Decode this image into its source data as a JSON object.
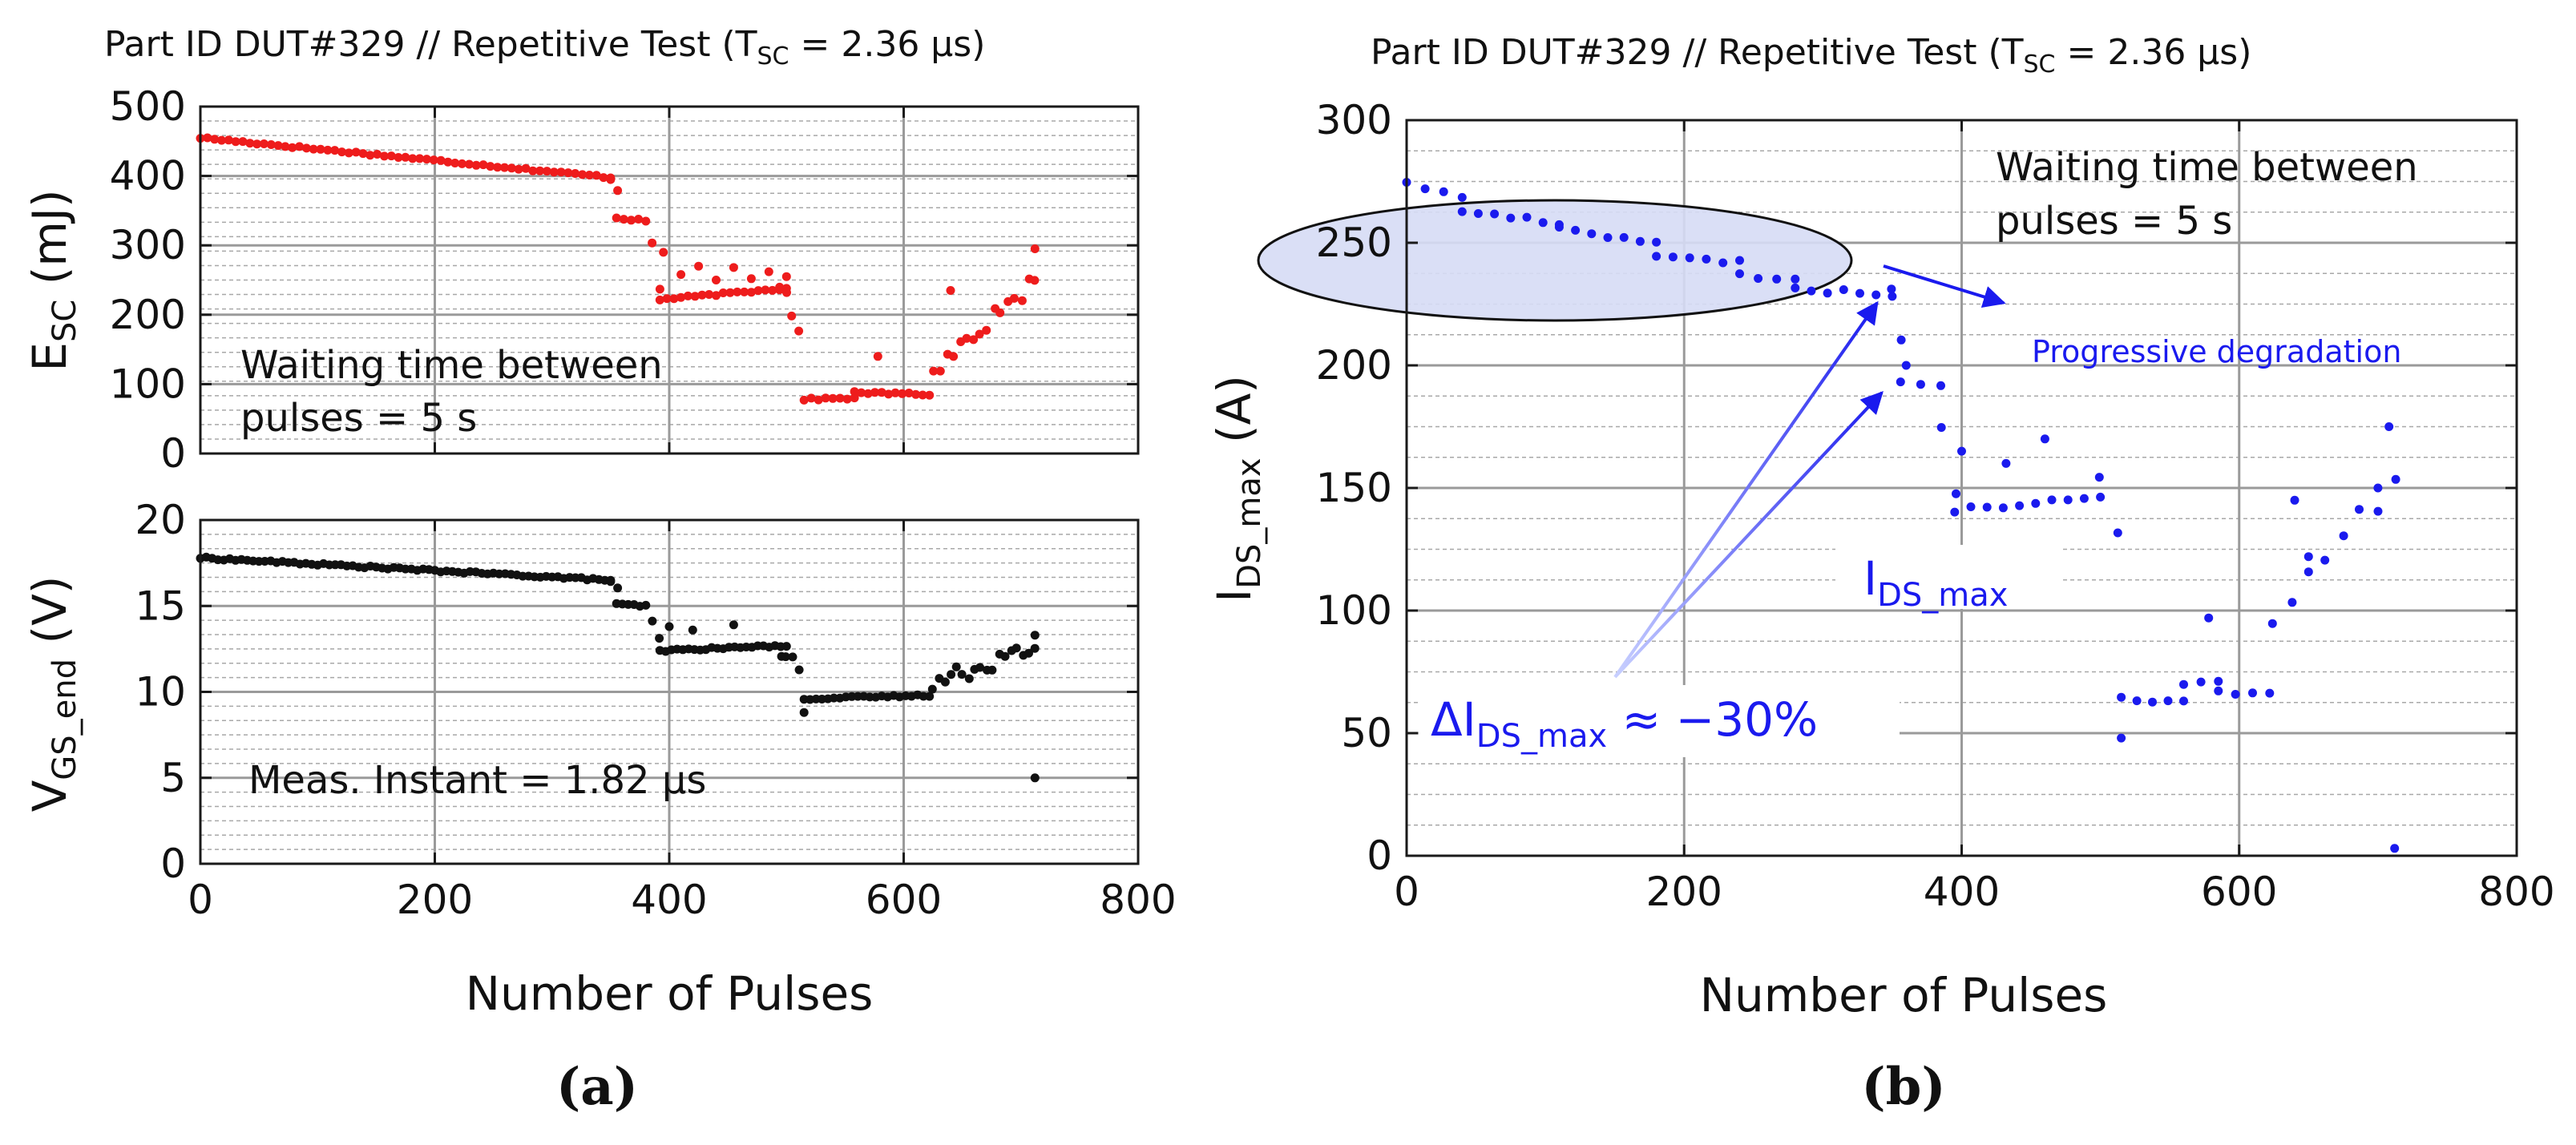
{
  "chart_data": [
    {
      "type": "scatter",
      "panel": "a-top",
      "title": "Part ID DUT#329 // Repetitive Test (T_SC = 2.36 µs)",
      "title_parts": {
        "pre": "Part ID DUT#329 // Repetitive Test (T",
        "sub": "SC",
        "post": " = 2.36 µs)"
      },
      "xlabel": "",
      "ylabel": "E_SC (mJ)",
      "ylabel_parts": {
        "pre": "E",
        "sub": "SC",
        "post": " (mJ)"
      },
      "xlim": [
        0,
        800
      ],
      "ylim": [
        0,
        500
      ],
      "yticks": [
        0,
        100,
        200,
        300,
        400,
        500
      ],
      "xticks": [],
      "grid": true,
      "color": "#ee1c1c",
      "annotation": [
        "Waiting time between",
        "pulses = 5 s"
      ],
      "series": [
        {
          "name": "E_SC",
          "segments": [
            {
              "x0": 0,
              "x1": 350,
              "y0": 455,
              "y1": 398,
              "mode": "line"
            },
            {
              "x0": 350,
              "x1": 356,
              "y0": 395,
              "y1": 380,
              "mode": "line"
            },
            {
              "x0": 355,
              "x1": 380,
              "y0": 340,
              "y1": 335,
              "mode": "line"
            },
            {
              "x0": 385,
              "x1": 392,
              "y0": 300,
              "y1": 240,
              "mode": "scatter"
            },
            {
              "x0": 392,
              "x1": 500,
              "y0": 222,
              "y1": 238,
              "mode": "line"
            },
            {
              "x0": 495,
              "x1": 510,
              "y0": 250,
              "y1": 185,
              "mode": "scatter"
            },
            {
              "x0": 515,
              "x1": 558,
              "y0": 78,
              "y1": 80,
              "mode": "line"
            },
            {
              "x0": 558,
              "x1": 622,
              "y0": 88,
              "y1": 85,
              "mode": "line"
            },
            {
              "x0": 625,
              "x1": 712,
              "y0": 120,
              "y1": 250,
              "mode": "scatter"
            }
          ],
          "outliers": [
            [
              395,
              290
            ],
            [
              410,
              258
            ],
            [
              425,
              270
            ],
            [
              440,
              250
            ],
            [
              455,
              268
            ],
            [
              470,
              252
            ],
            [
              485,
              262
            ],
            [
              500,
              255
            ],
            [
              578,
              140
            ],
            [
              640,
              235
            ],
            [
              712,
              295
            ]
          ]
        }
      ]
    },
    {
      "type": "scatter",
      "panel": "a-bottom",
      "xlabel": "Number of Pulses",
      "ylabel": "V_GS_end (V)",
      "ylabel_parts": {
        "pre": "V",
        "sub": "GS_end",
        "post": " (V)"
      },
      "xlim": [
        0,
        800
      ],
      "ylim": [
        0,
        20
      ],
      "yticks": [
        0,
        5,
        10,
        15,
        20
      ],
      "xticks": [
        0,
        200,
        400,
        600,
        800
      ],
      "grid": true,
      "color": "#111111",
      "annotation": [
        "Meas. Instant = 1.82 µs"
      ],
      "series": [
        {
          "name": "V_GS_end",
          "segments": [
            {
              "x0": 0,
              "x1": 350,
              "y0": 17.8,
              "y1": 16.5,
              "mode": "line"
            },
            {
              "x0": 350,
              "x1": 356,
              "y0": 16.4,
              "y1": 16.0,
              "mode": "line"
            },
            {
              "x0": 355,
              "x1": 380,
              "y0": 15.1,
              "y1": 15.0,
              "mode": "line"
            },
            {
              "x0": 385,
              "x1": 392,
              "y0": 14.0,
              "y1": 12.8,
              "mode": "scatter"
            },
            {
              "x0": 392,
              "x1": 500,
              "y0": 12.4,
              "y1": 12.7,
              "mode": "line"
            },
            {
              "x0": 495,
              "x1": 510,
              "y0": 12.5,
              "y1": 11.5,
              "mode": "scatter"
            },
            {
              "x0": 515,
              "x1": 622,
              "y0": 9.6,
              "y1": 9.8,
              "mode": "line"
            },
            {
              "x0": 625,
              "x1": 712,
              "y0": 10.5,
              "y1": 12.6,
              "mode": "scatter"
            }
          ],
          "outliers": [
            [
              400,
              13.8
            ],
            [
              420,
              13.6
            ],
            [
              455,
              13.9
            ],
            [
              515,
              8.8
            ],
            [
              712,
              13.3
            ],
            [
              712,
              5.0
            ]
          ]
        }
      ]
    },
    {
      "type": "scatter",
      "panel": "b",
      "title": "Part ID DUT#329 // Repetitive Test (T_SC = 2.36 µs)",
      "title_parts": {
        "pre": "Part ID DUT#329 // Repetitive Test (T",
        "sub": "SC",
        "post": " = 2.36 µs)"
      },
      "xlabel": "Number of Pulses",
      "ylabel": "I_DS_max (A)",
      "ylabel_parts": {
        "pre": "I",
        "sub": "DS_max",
        "post": " (A)"
      },
      "xlim": [
        0,
        800
      ],
      "ylim": [
        0,
        300
      ],
      "yticks": [
        0,
        50,
        100,
        150,
        200,
        250,
        300
      ],
      "xticks": [
        0,
        200,
        400,
        600,
        800
      ],
      "grid": true,
      "color": "#1a1aee",
      "annotation": [
        "Waiting time between",
        "pulses = 5 s"
      ],
      "series": [
        {
          "name": "I_DS_max",
          "segments": [
            {
              "x0": 0,
              "x1": 40,
              "y0": 275,
              "y1": 268,
              "mode": "line"
            },
            {
              "x0": 40,
              "x1": 110,
              "y0": 263,
              "y1": 258,
              "mode": "line"
            },
            {
              "x0": 110,
              "x1": 180,
              "y0": 256,
              "y1": 250,
              "mode": "line"
            },
            {
              "x0": 180,
              "x1": 240,
              "y0": 244,
              "y1": 242,
              "mode": "line"
            },
            {
              "x0": 240,
              "x1": 280,
              "y0": 237,
              "y1": 235,
              "mode": "line"
            },
            {
              "x0": 280,
              "x1": 350,
              "y0": 231,
              "y1": 229,
              "mode": "line"
            },
            {
              "x0": 350,
              "x1": 356,
              "y0": 228,
              "y1": 215,
              "mode": "scatter"
            },
            {
              "x0": 356,
              "x1": 385,
              "y0": 193,
              "y1": 191,
              "mode": "line"
            },
            {
              "x0": 385,
              "x1": 395,
              "y0": 180,
              "y1": 150,
              "mode": "scatter"
            },
            {
              "x0": 395,
              "x1": 500,
              "y0": 141,
              "y1": 146,
              "mode": "line"
            },
            {
              "x0": 500,
              "x1": 512,
              "y0": 150,
              "y1": 125,
              "mode": "scatter"
            },
            {
              "x0": 515,
              "x1": 560,
              "y0": 64,
              "y1": 63,
              "mode": "line"
            },
            {
              "x0": 560,
              "x1": 585,
              "y0": 70,
              "y1": 72,
              "mode": "line"
            },
            {
              "x0": 585,
              "x1": 622,
              "y0": 67,
              "y1": 66,
              "mode": "line"
            },
            {
              "x0": 625,
              "x1": 712,
              "y0": 95,
              "y1": 150,
              "mode": "scatter"
            }
          ],
          "outliers": [
            [
              360,
              200
            ],
            [
              400,
              165
            ],
            [
              432,
              160
            ],
            [
              460,
              170
            ],
            [
              515,
              48
            ],
            [
              578,
              97
            ],
            [
              640,
              145
            ],
            [
              650,
              122
            ],
            [
              700,
              150
            ],
            [
              708,
              175
            ],
            [
              712,
              3
            ]
          ]
        }
      ],
      "text_annotations": {
        "progressive": "Progressive degradation",
        "ids_label": {
          "pre": "I",
          "sub": "DS_max"
        },
        "delta_label": {
          "pre": "ΔI",
          "sub": "DS_max",
          "post": " ≈ −30%"
        }
      }
    }
  ],
  "panel_labels": {
    "a": "(a)",
    "b": "(b)"
  }
}
